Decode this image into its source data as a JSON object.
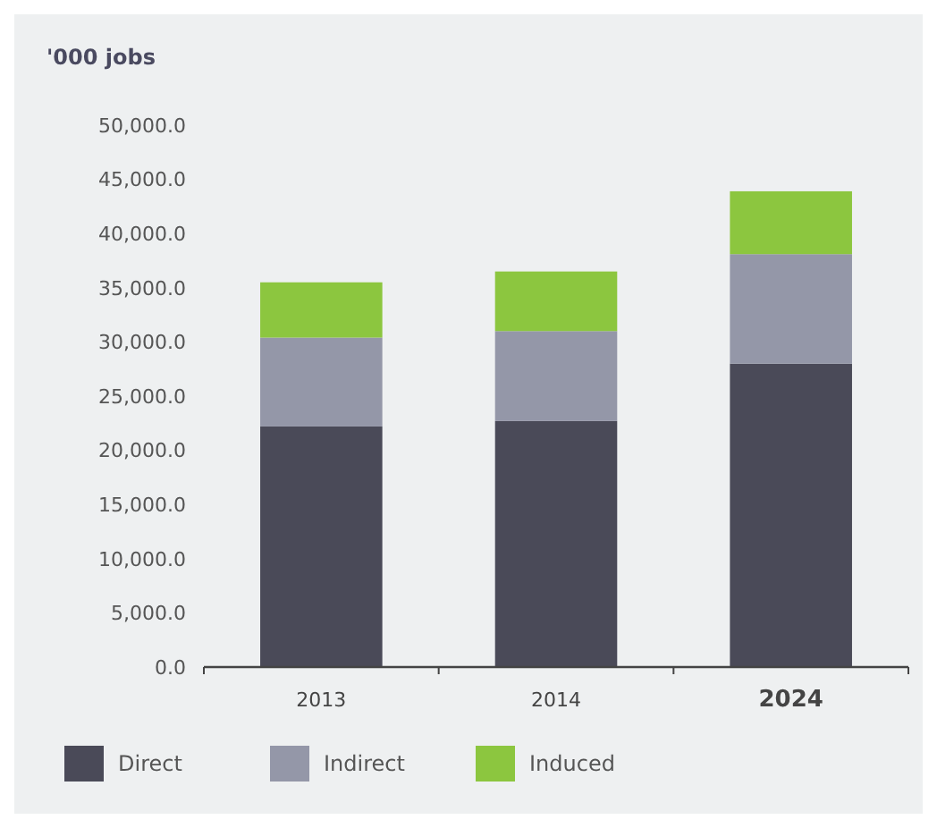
{
  "chart_data": {
    "type": "bar",
    "stacked": true,
    "ylabel": "'000 jobs",
    "categories": [
      "2013",
      "2014",
      "2024"
    ],
    "series": [
      {
        "name": "Direct",
        "color": "#4a4a58",
        "values": [
          22200,
          22700,
          28000
        ]
      },
      {
        "name": "Indirect",
        "color": "#9497a8",
        "values": [
          8200,
          8300,
          10100
        ]
      },
      {
        "name": "Induced",
        "color": "#8cc63f",
        "values": [
          5100,
          5500,
          5800
        ]
      }
    ],
    "ylim": [
      0,
      50000
    ],
    "yticks": [
      {
        "value": 0,
        "label": "0.0"
      },
      {
        "value": 5000,
        "label": "5,000.0"
      },
      {
        "value": 10000,
        "label": "10,000.0"
      },
      {
        "value": 15000,
        "label": "15,000.0"
      },
      {
        "value": 20000,
        "label": "20,000.0"
      },
      {
        "value": 25000,
        "label": "25,000.0"
      },
      {
        "value": 30000,
        "label": "30,000.0"
      },
      {
        "value": 35000,
        "label": "35,000.0"
      },
      {
        "value": 40000,
        "label": "40,000.0"
      },
      {
        "value": 45000,
        "label": "45,000.0"
      },
      {
        "value": 50000,
        "label": "50,000.0"
      }
    ],
    "legend": "bottom"
  }
}
